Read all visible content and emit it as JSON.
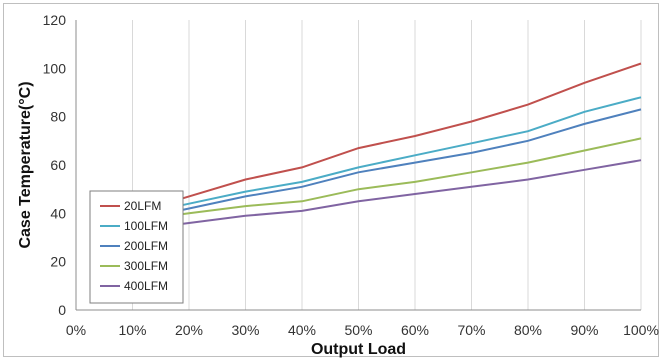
{
  "chart_data": {
    "type": "line",
    "title": "",
    "xlabel": "Output Load",
    "ylabel": "Case Temperature(°C)",
    "categories": [
      "0%",
      "10%",
      "20%",
      "30%",
      "40%",
      "50%",
      "60%",
      "70%",
      "80%",
      "90%",
      "100%"
    ],
    "ylim": [
      0,
      120
    ],
    "yticks": [
      0,
      20,
      40,
      60,
      80,
      100,
      120
    ],
    "grid": "vertical",
    "legend_position": "bottom-left",
    "series": [
      {
        "name": "20LFM",
        "color": "#c0504d",
        "x_start": 0.2,
        "values": [
          null,
          null,
          47,
          54,
          59,
          67,
          72,
          78,
          85,
          94,
          102
        ]
      },
      {
        "name": "100LFM",
        "color": "#4bacc6",
        "x_start": 0.2,
        "values": [
          null,
          null,
          44,
          49,
          53,
          59,
          64,
          69,
          74,
          82,
          88
        ]
      },
      {
        "name": "200LFM",
        "color": "#4f81bd",
        "x_start": 0.2,
        "values": [
          null,
          null,
          42,
          47,
          51,
          57,
          61,
          65,
          70,
          77,
          83
        ]
      },
      {
        "name": "300LFM",
        "color": "#9bbb59",
        "x_start": 0.2,
        "values": [
          null,
          null,
          40,
          43,
          45,
          50,
          53,
          57,
          61,
          66,
          71
        ]
      },
      {
        "name": "400LFM",
        "color": "#8064a2",
        "x_start": 0.2,
        "values": [
          null,
          null,
          36,
          39,
          41,
          45,
          48,
          51,
          54,
          58,
          62
        ]
      }
    ]
  }
}
